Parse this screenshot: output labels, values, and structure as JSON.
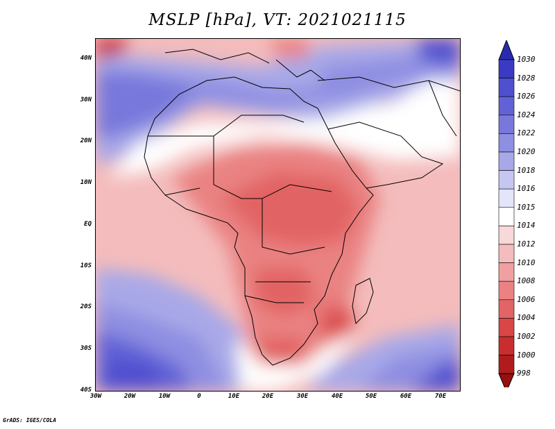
{
  "title": "MSLP [hPa], VT: 2021021115",
  "credit": "GrADS: IGES/COLA",
  "lat_ticks": [
    "40N",
    "30N",
    "20N",
    "10N",
    "EQ",
    "10S",
    "20S",
    "30S",
    "40S"
  ],
  "lon_ticks": [
    "30W",
    "20W",
    "10W",
    "0",
    "10E",
    "20E",
    "30E",
    "40E",
    "50E",
    "60E",
    "70E"
  ],
  "colorbar": {
    "levels": [
      "1030",
      "1028",
      "1026",
      "1024",
      "1022",
      "1020",
      "1018",
      "1016",
      "1015",
      "1014",
      "1012",
      "1010",
      "1008",
      "1006",
      "1004",
      "1002",
      "1000",
      "998"
    ],
    "colors": [
      "#2a2ab0",
      "#3a3ac4",
      "#4f4fd0",
      "#6262d6",
      "#7878dc",
      "#8e8ee2",
      "#a8a8e8",
      "#c6c6f2",
      "#e4e4fa",
      "#ffffff",
      "#f8d8d8",
      "#f4bcbc",
      "#f0a0a0",
      "#ea8282",
      "#e26464",
      "#d84646",
      "#c82e2e",
      "#b01c1c",
      "#961010"
    ]
  },
  "map": {
    "colors": {
      "land_outline": "#000000",
      "high_pressure": "#4040c8",
      "low_pressure": "#c83232",
      "neutral": "#ffffff"
    }
  }
}
